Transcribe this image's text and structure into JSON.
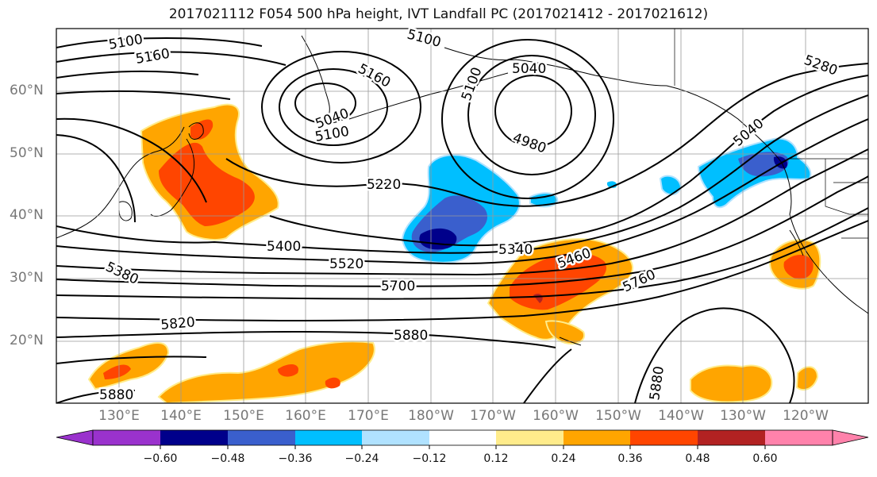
{
  "title": "2017021112 F054 500 hPa height, IVT Landfall PC (2017021412 - 2017021612)",
  "lat_labels": [
    "60°N",
    "50°N",
    "40°N",
    "30°N",
    "20°N"
  ],
  "lon_labels": [
    "130°E",
    "140°E",
    "150°E",
    "160°E",
    "170°E",
    "180°W",
    "170°W",
    "160°W",
    "150°W",
    "140°W",
    "130°W",
    "120°W"
  ],
  "contour_labels": [
    "5100",
    "5160",
    "5100",
    "5160",
    "5040",
    "5100",
    "5040",
    "5100",
    "4980",
    "5280",
    "5040",
    "5220",
    "5400",
    "5340",
    "5460",
    "5520",
    "5380",
    "5700",
    "5760",
    "5820",
    "5880",
    "5880",
    "5880"
  ],
  "colorbar": {
    "ticks": [
      "−0.60",
      "−0.48",
      "−0.36",
      "−0.24",
      "−0.12",
      "0.12",
      "0.24",
      "0.36",
      "0.48",
      "0.60"
    ],
    "colors": [
      "#9a32cd",
      "#00008b",
      "#3a5fcd",
      "#00bfff",
      "#b0e2ff",
      "#ffffff",
      "#ffec8b",
      "#ffa500",
      "#ff4500",
      "#b22222",
      "#ff82ab"
    ]
  },
  "colors": {
    "positive_low": "#ffa500",
    "positive_mid": "#ff4500",
    "positive_high": "#b22222",
    "positive_edge": "#ffec8b",
    "negative_low": "#00bfff",
    "negative_mid": "#3a5fcd",
    "negative_high": "#00008b",
    "contour": "#000000",
    "gridline": "#999999",
    "coastline": "#000000"
  }
}
